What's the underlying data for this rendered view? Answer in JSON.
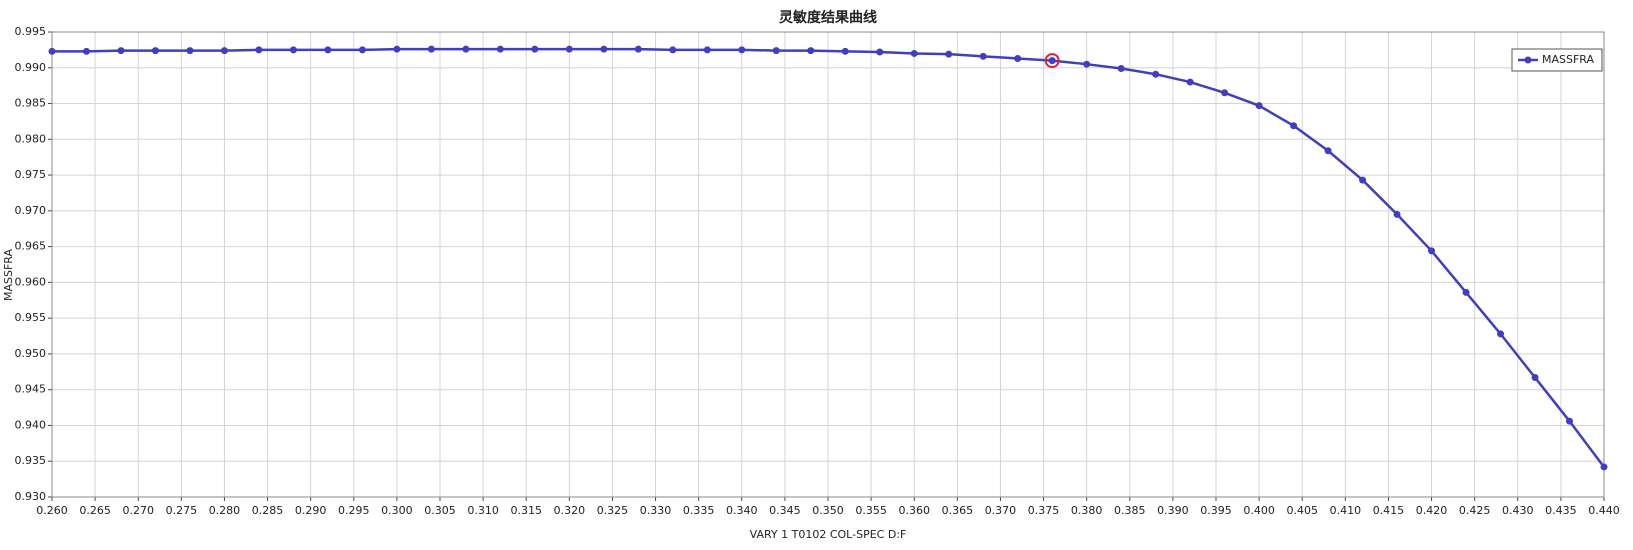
{
  "chart_data": {
    "type": "line",
    "title": "灵敏度结果曲线",
    "x_label": "VARY    1 T0102 COL-SPEC D:F",
    "y_label": "MASSFRA",
    "x": [
      0.26,
      0.264,
      0.268,
      0.272,
      0.276,
      0.28,
      0.284,
      0.288,
      0.292,
      0.296,
      0.3,
      0.304,
      0.308,
      0.312,
      0.316,
      0.32,
      0.324,
      0.328,
      0.332,
      0.336,
      0.34,
      0.344,
      0.348,
      0.352,
      0.356,
      0.36,
      0.364,
      0.368,
      0.372,
      0.376,
      0.38,
      0.384,
      0.388,
      0.392,
      0.396,
      0.4,
      0.404,
      0.408,
      0.412,
      0.416,
      0.42,
      0.424,
      0.428,
      0.432,
      0.436,
      0.44
    ],
    "series": [
      {
        "name": "MASSFRA",
        "color": "#3f3fbf",
        "values": [
          0.9923,
          0.9923,
          0.9924,
          0.9924,
          0.9924,
          0.9924,
          0.9925,
          0.9925,
          0.9925,
          0.9925,
          0.9926,
          0.9926,
          0.9926,
          0.9926,
          0.9926,
          0.9926,
          0.9926,
          0.9926,
          0.9925,
          0.9925,
          0.9925,
          0.9924,
          0.9924,
          0.9923,
          0.9922,
          0.992,
          0.9919,
          0.9916,
          0.9913,
          0.991,
          0.9905,
          0.9899,
          0.9891,
          0.988,
          0.9865,
          0.9847,
          0.9819,
          0.9784,
          0.9743,
          0.9695,
          0.9644,
          0.9586,
          0.9528,
          0.9467,
          0.9406,
          0.9342
        ]
      }
    ],
    "selected_index": 29,
    "xlim": [
      0.26,
      0.44
    ],
    "xticks": [
      {
        "value": 0.26,
        "label": "0.260"
      },
      {
        "value": 0.265,
        "label": "0.265"
      },
      {
        "value": 0.27,
        "label": "0.270"
      },
      {
        "value": 0.275,
        "label": "0.275"
      },
      {
        "value": 0.28,
        "label": "0.280"
      },
      {
        "value": 0.285,
        "label": "0.285"
      },
      {
        "value": 0.29,
        "label": "0.290"
      },
      {
        "value": 0.295,
        "label": "0.295"
      },
      {
        "value": 0.3,
        "label": "0.300"
      },
      {
        "value": 0.305,
        "label": "0.305"
      },
      {
        "value": 0.31,
        "label": "0.310"
      },
      {
        "value": 0.315,
        "label": "0.315"
      },
      {
        "value": 0.32,
        "label": "0.320"
      },
      {
        "value": 0.325,
        "label": "0.325"
      },
      {
        "value": 0.33,
        "label": "0.330"
      },
      {
        "value": 0.335,
        "label": "0.335"
      },
      {
        "value": 0.34,
        "label": "0.340"
      },
      {
        "value": 0.345,
        "label": "0.345"
      },
      {
        "value": 0.35,
        "label": "0.350"
      },
      {
        "value": 0.355,
        "label": "0.355"
      },
      {
        "value": 0.36,
        "label": "0.360"
      },
      {
        "value": 0.365,
        "label": "0.365"
      },
      {
        "value": 0.37,
        "label": "0.370"
      },
      {
        "value": 0.375,
        "label": "0.375"
      },
      {
        "value": 0.38,
        "label": "0.380"
      },
      {
        "value": 0.385,
        "label": "0.385"
      },
      {
        "value": 0.39,
        "label": "0.390"
      },
      {
        "value": 0.395,
        "label": "0.395"
      },
      {
        "value": 0.4,
        "label": "0.400"
      },
      {
        "value": 0.405,
        "label": "0.405"
      },
      {
        "value": 0.41,
        "label": "0.410"
      },
      {
        "value": 0.415,
        "label": "0.415"
      },
      {
        "value": 0.42,
        "label": "0.420"
      },
      {
        "value": 0.425,
        "label": "0.425"
      },
      {
        "value": 0.43,
        "label": "0.430"
      },
      {
        "value": 0.435,
        "label": "0.435"
      },
      {
        "value": 0.44,
        "label": "0.440"
      }
    ],
    "ylim": [
      0.93,
      0.995
    ],
    "yticks": [
      {
        "value": 0.93,
        "label": "0.930"
      },
      {
        "value": 0.935,
        "label": "0.935"
      },
      {
        "value": 0.94,
        "label": "0.940"
      },
      {
        "value": 0.945,
        "label": "0.945"
      },
      {
        "value": 0.95,
        "label": "0.950"
      },
      {
        "value": 0.955,
        "label": "0.955"
      },
      {
        "value": 0.96,
        "label": "0.960"
      },
      {
        "value": 0.965,
        "label": "0.965"
      },
      {
        "value": 0.97,
        "label": "0.970"
      },
      {
        "value": 0.975,
        "label": "0.975"
      },
      {
        "value": 0.98,
        "label": "0.980"
      },
      {
        "value": 0.985,
        "label": "0.985"
      },
      {
        "value": 0.99,
        "label": "0.990"
      },
      {
        "value": 0.995,
        "label": "0.995"
      }
    ],
    "grid": true,
    "legend": "upper right"
  }
}
